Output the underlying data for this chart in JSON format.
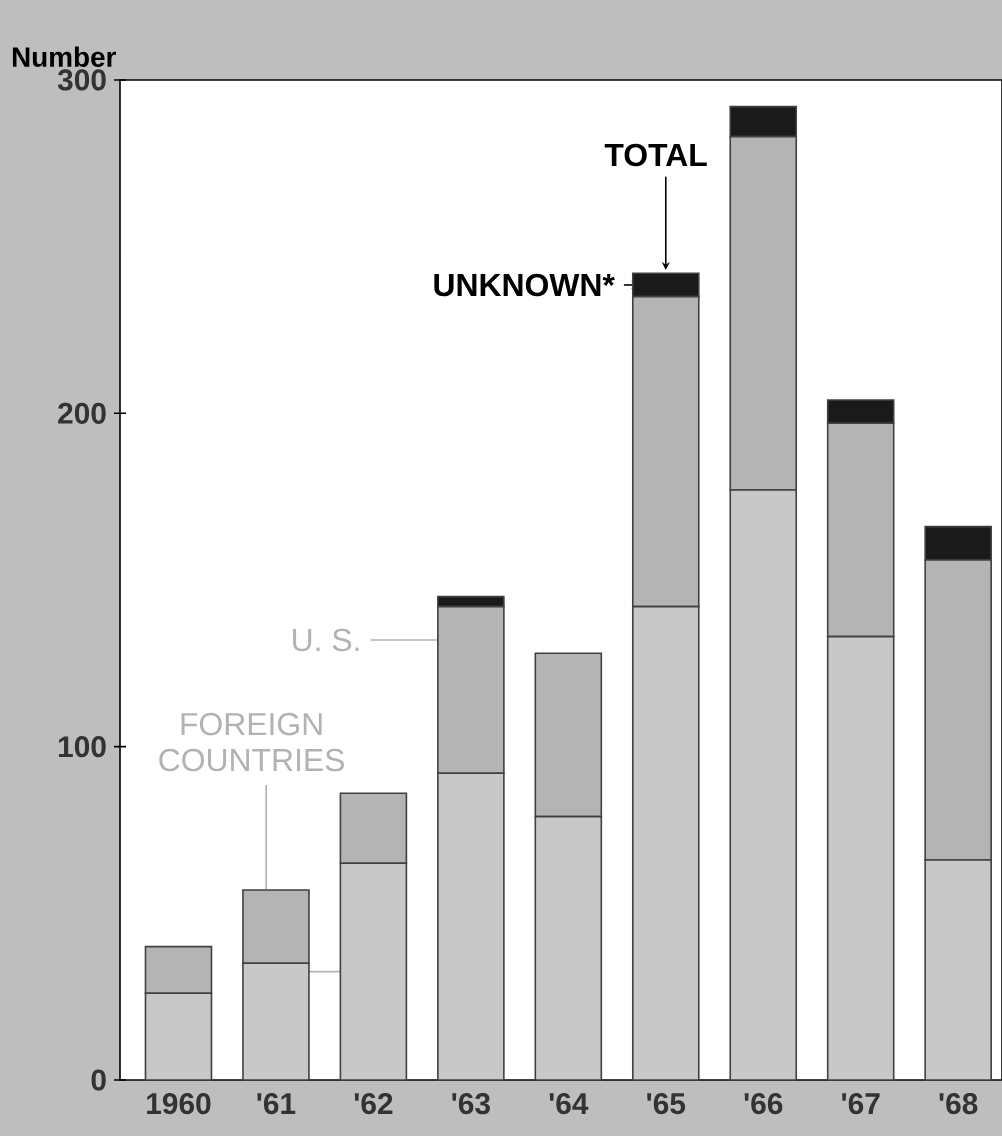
{
  "chart_data": {
    "type": "bar",
    "stacked": true,
    "ylabel": "Number",
    "categories": [
      "1960",
      "'61",
      "'62",
      "'63",
      "'64",
      "'65",
      "'66",
      "'67",
      "'68"
    ],
    "series": [
      {
        "name": "FOREIGN COUNTRIES",
        "color": "#c8c8c8",
        "values": [
          26,
          35,
          65,
          92,
          79,
          142,
          177,
          133,
          66
        ]
      },
      {
        "name": "U. S.",
        "color": "#b4b4b4",
        "values": [
          14,
          22,
          21,
          50,
          49,
          93,
          106,
          64,
          90
        ]
      },
      {
        "name": "UNKNOWN*",
        "color": "#1a1a1a",
        "values": [
          0,
          0,
          0,
          3,
          0,
          7,
          9,
          7,
          10
        ]
      }
    ],
    "annotations": [
      {
        "text": "TOTAL",
        "x": "'65",
        "y": 242
      }
    ],
    "ylim": [
      0,
      300
    ],
    "yticks": [
      0,
      100,
      200,
      300
    ],
    "grid": false,
    "legend": "left"
  }
}
